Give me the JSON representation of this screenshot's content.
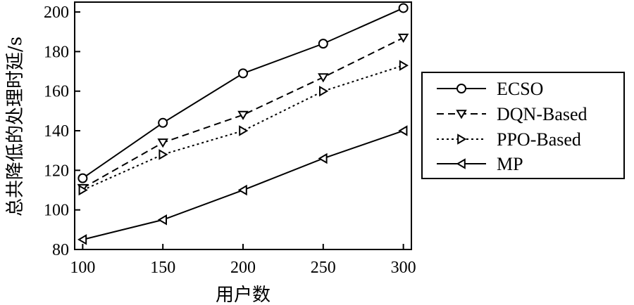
{
  "chart_data": {
    "type": "line",
    "xlabel": "用户数",
    "ylabel": "总共降低的处理时延/s",
    "x": [
      100,
      150,
      200,
      250,
      300
    ],
    "xticks": [
      100,
      150,
      200,
      250,
      300
    ],
    "yticks": [
      80,
      100,
      120,
      140,
      160,
      180,
      200
    ],
    "xlim": [
      95,
      305
    ],
    "ylim": [
      80,
      205
    ],
    "grid": false,
    "legend_position": "right",
    "series": [
      {
        "name": "ECSO",
        "marker": "circle",
        "dash": "solid",
        "color": "#000000",
        "values": [
          116,
          144,
          169,
          184,
          202
        ]
      },
      {
        "name": "DQN-Based",
        "marker": "triangle-down",
        "dash": "dashed",
        "color": "#000000",
        "values": [
          111,
          134,
          148,
          167,
          187
        ]
      },
      {
        "name": "PPO-Based",
        "marker": "triangle-right",
        "dash": "dotted",
        "color": "#000000",
        "values": [
          110,
          128,
          140,
          160,
          173
        ]
      },
      {
        "name": "MP",
        "marker": "triangle-left",
        "dash": "solid",
        "color": "#000000",
        "values": [
          85,
          95,
          110,
          126,
          140
        ]
      }
    ]
  }
}
